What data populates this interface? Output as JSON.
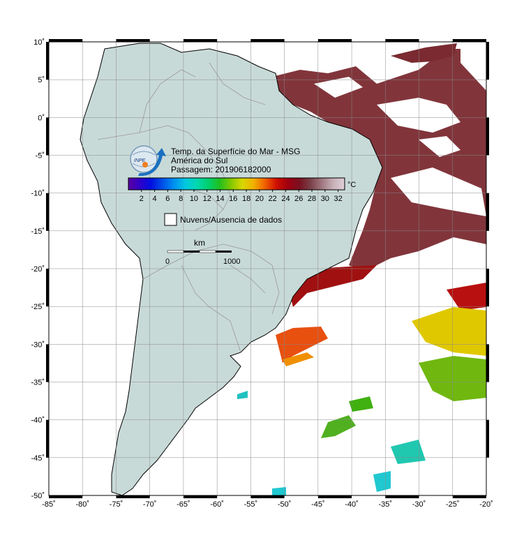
{
  "title_lines": {
    "line1": "Temp. da Superfície do Mar - MSG",
    "line2": "América do Sul",
    "line3": "Passagem: 201906182000"
  },
  "logo_text": "INPE",
  "colorbar": {
    "unit": "°C",
    "ticks": [
      "2",
      "4",
      "6",
      "8",
      "10",
      "12",
      "14",
      "16",
      "18",
      "20",
      "22",
      "24",
      "26",
      "28",
      "30",
      "32"
    ],
    "min": 0,
    "max": 33,
    "stops": [
      "#5a00a0",
      "#3000c8",
      "#0010e0",
      "#0050e8",
      "#0090f0",
      "#00c8e0",
      "#00d8b0",
      "#00d070",
      "#20c020",
      "#80c800",
      "#d8d800",
      "#f0b000",
      "#f06000",
      "#d01000",
      "#a00010",
      "#7a1020",
      "#7a4048",
      "#a07880",
      "#c8b0b8",
      "#e0d0d8"
    ]
  },
  "clouds_legend": {
    "label": "Nuvens/Ausencia de dados"
  },
  "scale_bar": {
    "unit": "km",
    "start": "0",
    "end": "1000"
  },
  "axes": {
    "x_ticks": [
      "-85˚",
      "-80˚",
      "-75˚",
      "-70˚",
      "-65˚",
      "-60˚",
      "-55˚",
      "-50˚",
      "-45˚",
      "-40˚",
      "-35˚",
      "-30˚",
      "-25˚",
      "-20˚"
    ],
    "y_ticks": [
      "10˚",
      "5˚",
      "0˚",
      "-5˚",
      "-10˚",
      "-15˚",
      "-20˚",
      "-25˚",
      "-30˚",
      "-35˚",
      "-40˚",
      "-45˚",
      "-50˚"
    ],
    "lon_range": [
      -85,
      -20
    ],
    "lat_range": [
      -50,
      10
    ]
  },
  "colors": {
    "land": "#c8dad8",
    "ocean": "#ffffff",
    "warm_sst": "#7a2a30",
    "mid_sst": "#a01010",
    "coastline": "#000000",
    "grid": "#888888"
  }
}
